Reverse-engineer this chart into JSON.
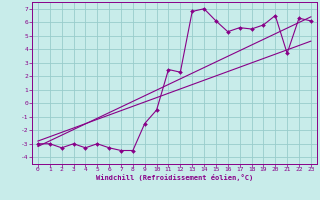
{
  "xlabel": "Windchill (Refroidissement éolien,°C)",
  "xlim": [
    -0.5,
    23.5
  ],
  "ylim": [
    -4.5,
    7.5
  ],
  "xticks": [
    0,
    1,
    2,
    3,
    4,
    5,
    6,
    7,
    8,
    9,
    10,
    11,
    12,
    13,
    14,
    15,
    16,
    17,
    18,
    19,
    20,
    21,
    22,
    23
  ],
  "yticks": [
    -4,
    -3,
    -2,
    -1,
    0,
    1,
    2,
    3,
    4,
    5,
    6,
    7
  ],
  "bg_color": "#c8ecea",
  "line_color": "#880088",
  "grid_color": "#99cccc",
  "data_x": [
    0,
    1,
    2,
    3,
    4,
    5,
    6,
    7,
    8,
    9,
    10,
    11,
    12,
    13,
    14,
    15,
    16,
    17,
    18,
    19,
    20,
    21,
    22,
    23
  ],
  "data_y": [
    -3,
    -3,
    -3.3,
    -3.0,
    -3.3,
    -3.0,
    -3.3,
    -3.5,
    -3.5,
    -1.5,
    -0.5,
    2.5,
    2.3,
    6.8,
    7.0,
    6.1,
    5.3,
    5.6,
    5.5,
    5.8,
    6.5,
    3.7,
    6.3,
    6.1
  ],
  "line1_x": [
    0,
    23
  ],
  "line1_y": [
    -3.2,
    6.4
  ],
  "line2_x": [
    0,
    23
  ],
  "line2_y": [
    -2.8,
    4.6
  ]
}
